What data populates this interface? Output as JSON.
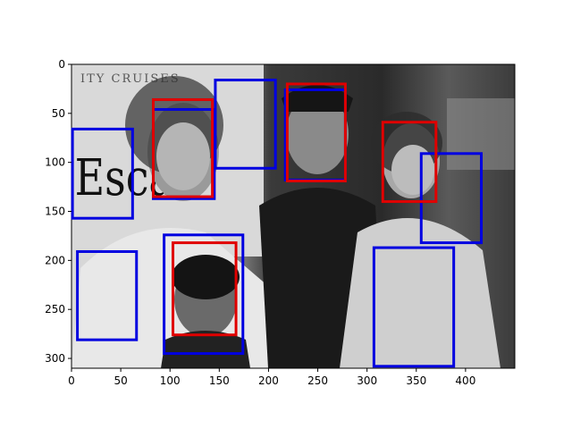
{
  "figure": {
    "background": "#ffffff",
    "image": {
      "description_visible_text": "ITY CRUISES",
      "sign_text": "Esca",
      "tone": "grayscale"
    },
    "axes": {
      "x_ticks": [
        {
          "value": 0,
          "label": "0"
        },
        {
          "value": 50,
          "label": "50"
        },
        {
          "value": 100,
          "label": "100"
        },
        {
          "value": 150,
          "label": "150"
        },
        {
          "value": 200,
          "label": "200"
        },
        {
          "value": 250,
          "label": "250"
        },
        {
          "value": 300,
          "label": "300"
        },
        {
          "value": 350,
          "label": "350"
        },
        {
          "value": 400,
          "label": "400"
        }
      ],
      "y_ticks": [
        {
          "value": 0,
          "label": "0"
        },
        {
          "value": 50,
          "label": "50"
        },
        {
          "value": 100,
          "label": "100"
        },
        {
          "value": 150,
          "label": "150"
        },
        {
          "value": 200,
          "label": "200"
        },
        {
          "value": 250,
          "label": "250"
        },
        {
          "value": 300,
          "label": "300"
        }
      ],
      "xlim": [
        0,
        450
      ],
      "ylim": [
        310,
        0
      ]
    },
    "boxes": {
      "red_color": "#e00000",
      "blue_color": "#0000e0",
      "red": [
        {
          "x0": 83,
          "y0": 36,
          "x1": 143,
          "y1": 135
        },
        {
          "x0": 219,
          "y0": 20,
          "x1": 278,
          "y1": 119
        },
        {
          "x0": 316,
          "y0": 59,
          "x1": 370,
          "y1": 140
        },
        {
          "x0": 103,
          "y0": 182,
          "x1": 167,
          "y1": 276
        }
      ],
      "blue": [
        {
          "x0": 1,
          "y0": 66,
          "x1": 62,
          "y1": 157
        },
        {
          "x0": 83,
          "y0": 46,
          "x1": 145,
          "y1": 137
        },
        {
          "x0": 146,
          "y0": 16,
          "x1": 207,
          "y1": 106
        },
        {
          "x0": 217,
          "y0": 26,
          "x1": 278,
          "y1": 118
        },
        {
          "x0": 355,
          "y0": 91,
          "x1": 416,
          "y1": 182
        },
        {
          "x0": 6,
          "y0": 191,
          "x1": 66,
          "y1": 281
        },
        {
          "x0": 94,
          "y0": 174,
          "x1": 174,
          "y1": 295
        },
        {
          "x0": 307,
          "y0": 187,
          "x1": 388,
          "y1": 308
        }
      ]
    }
  }
}
